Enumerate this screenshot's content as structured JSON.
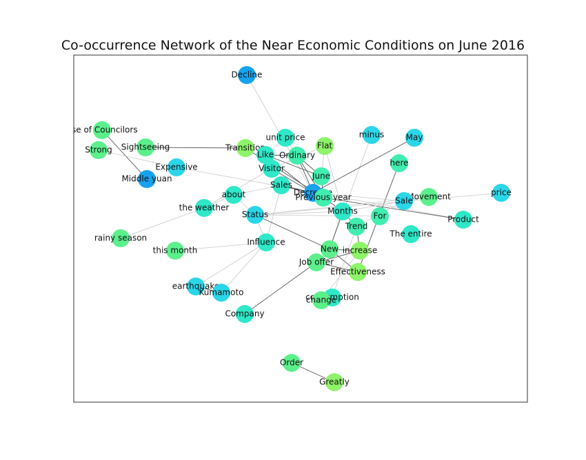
{
  "title": "Co-occurrence Network of the Near Economic Conditions on June 2016",
  "colors": {
    "blue": "#17a2f0",
    "cyan": "#2ad6e8",
    "aqua": "#2ee8c8",
    "teal": "#40eeb0",
    "green": "#5cf08c",
    "lime": "#8ef46a",
    "edge_dark": "#555555",
    "edge_light": "#c8c8c8"
  },
  "nodes": [
    {
      "id": "decline",
      "label": "Decline",
      "color": "blue"
    },
    {
      "id": "councilors",
      "label": "use of Councilors",
      "color": "green"
    },
    {
      "id": "strong",
      "label": "Strong",
      "color": "green"
    },
    {
      "id": "sightseeing",
      "label": "Sightseeing",
      "color": "green"
    },
    {
      "id": "transition",
      "label": "Transition",
      "color": "lime"
    },
    {
      "id": "unitprice",
      "label": "unit price",
      "color": "aqua"
    },
    {
      "id": "flat",
      "label": "Flat",
      "color": "lime"
    },
    {
      "id": "minus",
      "label": "minus",
      "color": "cyan"
    },
    {
      "id": "may",
      "label": "May",
      "color": "cyan"
    },
    {
      "id": "like",
      "label": "Like",
      "color": "aqua"
    },
    {
      "id": "ordinary",
      "label": "Ordinary",
      "color": "teal"
    },
    {
      "id": "here",
      "label": "here",
      "color": "teal"
    },
    {
      "id": "expensive",
      "label": "Expensive",
      "color": "cyan"
    },
    {
      "id": "visitor",
      "label": "Visitor",
      "color": "aqua"
    },
    {
      "id": "middleyuan",
      "label": "Middle yuan",
      "color": "blue"
    },
    {
      "id": "june",
      "label": "June",
      "color": "teal"
    },
    {
      "id": "sales",
      "label": "Sales",
      "color": "aqua"
    },
    {
      "id": "decrease",
      "label": "Decrease",
      "color": "blue"
    },
    {
      "id": "previousyear",
      "label": "Previous year",
      "color": "teal"
    },
    {
      "id": "about",
      "label": "about",
      "color": "aqua"
    },
    {
      "id": "price",
      "label": "price",
      "color": "cyan"
    },
    {
      "id": "movement",
      "label": "Movement",
      "color": "green"
    },
    {
      "id": "sale",
      "label": "Sale",
      "color": "cyan"
    },
    {
      "id": "weather",
      "label": "the weather",
      "color": "aqua"
    },
    {
      "id": "months",
      "label": "Months",
      "color": "aqua"
    },
    {
      "id": "status",
      "label": "Status",
      "color": "cyan"
    },
    {
      "id": "for",
      "label": "For",
      "color": "teal"
    },
    {
      "id": "product",
      "label": "Product",
      "color": "aqua"
    },
    {
      "id": "trend",
      "label": "Trend",
      "color": "teal"
    },
    {
      "id": "theentire",
      "label": "The entire",
      "color": "aqua"
    },
    {
      "id": "rainy",
      "label": "rainy season",
      "color": "green"
    },
    {
      "id": "influence",
      "label": "Influence",
      "color": "aqua"
    },
    {
      "id": "thismonth",
      "label": "this month",
      "color": "green"
    },
    {
      "id": "new",
      "label": "New",
      "color": "green"
    },
    {
      "id": "increase",
      "label": "increase",
      "color": "lime"
    },
    {
      "id": "joboffer",
      "label": "Job offer",
      "color": "green"
    },
    {
      "id": "effectiveness",
      "label": "Effectiveness",
      "color": "lime"
    },
    {
      "id": "earthquake",
      "label": "earthquake",
      "color": "cyan"
    },
    {
      "id": "kumamoto",
      "label": "Kumamoto",
      "color": "cyan"
    },
    {
      "id": "consumption",
      "label": "consumption",
      "color": "aqua"
    },
    {
      "id": "change",
      "label": "change",
      "color": "green"
    },
    {
      "id": "company",
      "label": "Company",
      "color": "aqua"
    },
    {
      "id": "order",
      "label": "Order",
      "color": "green"
    },
    {
      "id": "greatly",
      "label": "Greatly",
      "color": "lime"
    }
  ],
  "edges": [
    [
      "decline",
      "decrease",
      "light"
    ],
    [
      "councilors",
      "middleyuan",
      "dark"
    ],
    [
      "strong",
      "expensive",
      "light"
    ],
    [
      "sightseeing",
      "transition",
      "dark"
    ],
    [
      "unitprice",
      "like",
      "light"
    ],
    [
      "unitprice",
      "ordinary",
      "light"
    ],
    [
      "like",
      "ordinary",
      "dark"
    ],
    [
      "like",
      "june",
      "dark"
    ],
    [
      "like",
      "decrease",
      "dark"
    ],
    [
      "ordinary",
      "decrease",
      "dark"
    ],
    [
      "ordinary",
      "previousyear",
      "dark"
    ],
    [
      "ordinary",
      "june",
      "dark"
    ],
    [
      "transition",
      "previousyear",
      "dark"
    ],
    [
      "flat",
      "june",
      "light"
    ],
    [
      "flat",
      "visitor",
      "light"
    ],
    [
      "flat",
      "months",
      "light"
    ],
    [
      "minus",
      "new",
      "light"
    ],
    [
      "may",
      "decrease",
      "dark"
    ],
    [
      "here",
      "effectiveness",
      "dark"
    ],
    [
      "expensive",
      "product",
      "light"
    ],
    [
      "visitor",
      "decrease",
      "dark"
    ],
    [
      "visitor",
      "weather",
      "light"
    ],
    [
      "june",
      "previousyear",
      "dark"
    ],
    [
      "sales",
      "previousyear",
      "dark"
    ],
    [
      "sales",
      "decrease",
      "dark"
    ],
    [
      "sales",
      "about",
      "light"
    ],
    [
      "sales",
      "influence",
      "light"
    ],
    [
      "about",
      "status",
      "light"
    ],
    [
      "about",
      "weather",
      "light"
    ],
    [
      "decrease",
      "sale",
      "light"
    ],
    [
      "previousyear",
      "product",
      "dark"
    ],
    [
      "previousyear",
      "months",
      "dark"
    ],
    [
      "price",
      "status",
      "light"
    ],
    [
      "movement",
      "sale",
      "light"
    ],
    [
      "movement",
      "status",
      "light"
    ],
    [
      "months",
      "trend",
      "dark"
    ],
    [
      "months",
      "status",
      "light"
    ],
    [
      "months",
      "new",
      "dark"
    ],
    [
      "status",
      "influence",
      "light"
    ],
    [
      "status",
      "new",
      "dark"
    ],
    [
      "status",
      "for",
      "light"
    ],
    [
      "trend",
      "increase",
      "dark"
    ],
    [
      "new",
      "increase",
      "dark"
    ],
    [
      "new",
      "effectiveness",
      "dark"
    ],
    [
      "joboffer",
      "effectiveness",
      "dark"
    ],
    [
      "joboffer",
      "company",
      "dark"
    ],
    [
      "joboffer",
      "increase",
      "dark"
    ],
    [
      "rainy",
      "weather",
      "light"
    ],
    [
      "influence",
      "earthquake",
      "light"
    ],
    [
      "influence",
      "kumamoto",
      "light"
    ],
    [
      "influence",
      "thismonth",
      "light"
    ],
    [
      "consumption",
      "change",
      "dark"
    ],
    [
      "consumption",
      "trend",
      "light"
    ],
    [
      "change",
      "increase",
      "light"
    ],
    [
      "kumamoto",
      "earthquake",
      "dark"
    ],
    [
      "order",
      "greatly",
      "dark"
    ],
    [
      "sale",
      "months",
      "light"
    ],
    [
      "sale",
      "trend",
      "light"
    ]
  ]
}
